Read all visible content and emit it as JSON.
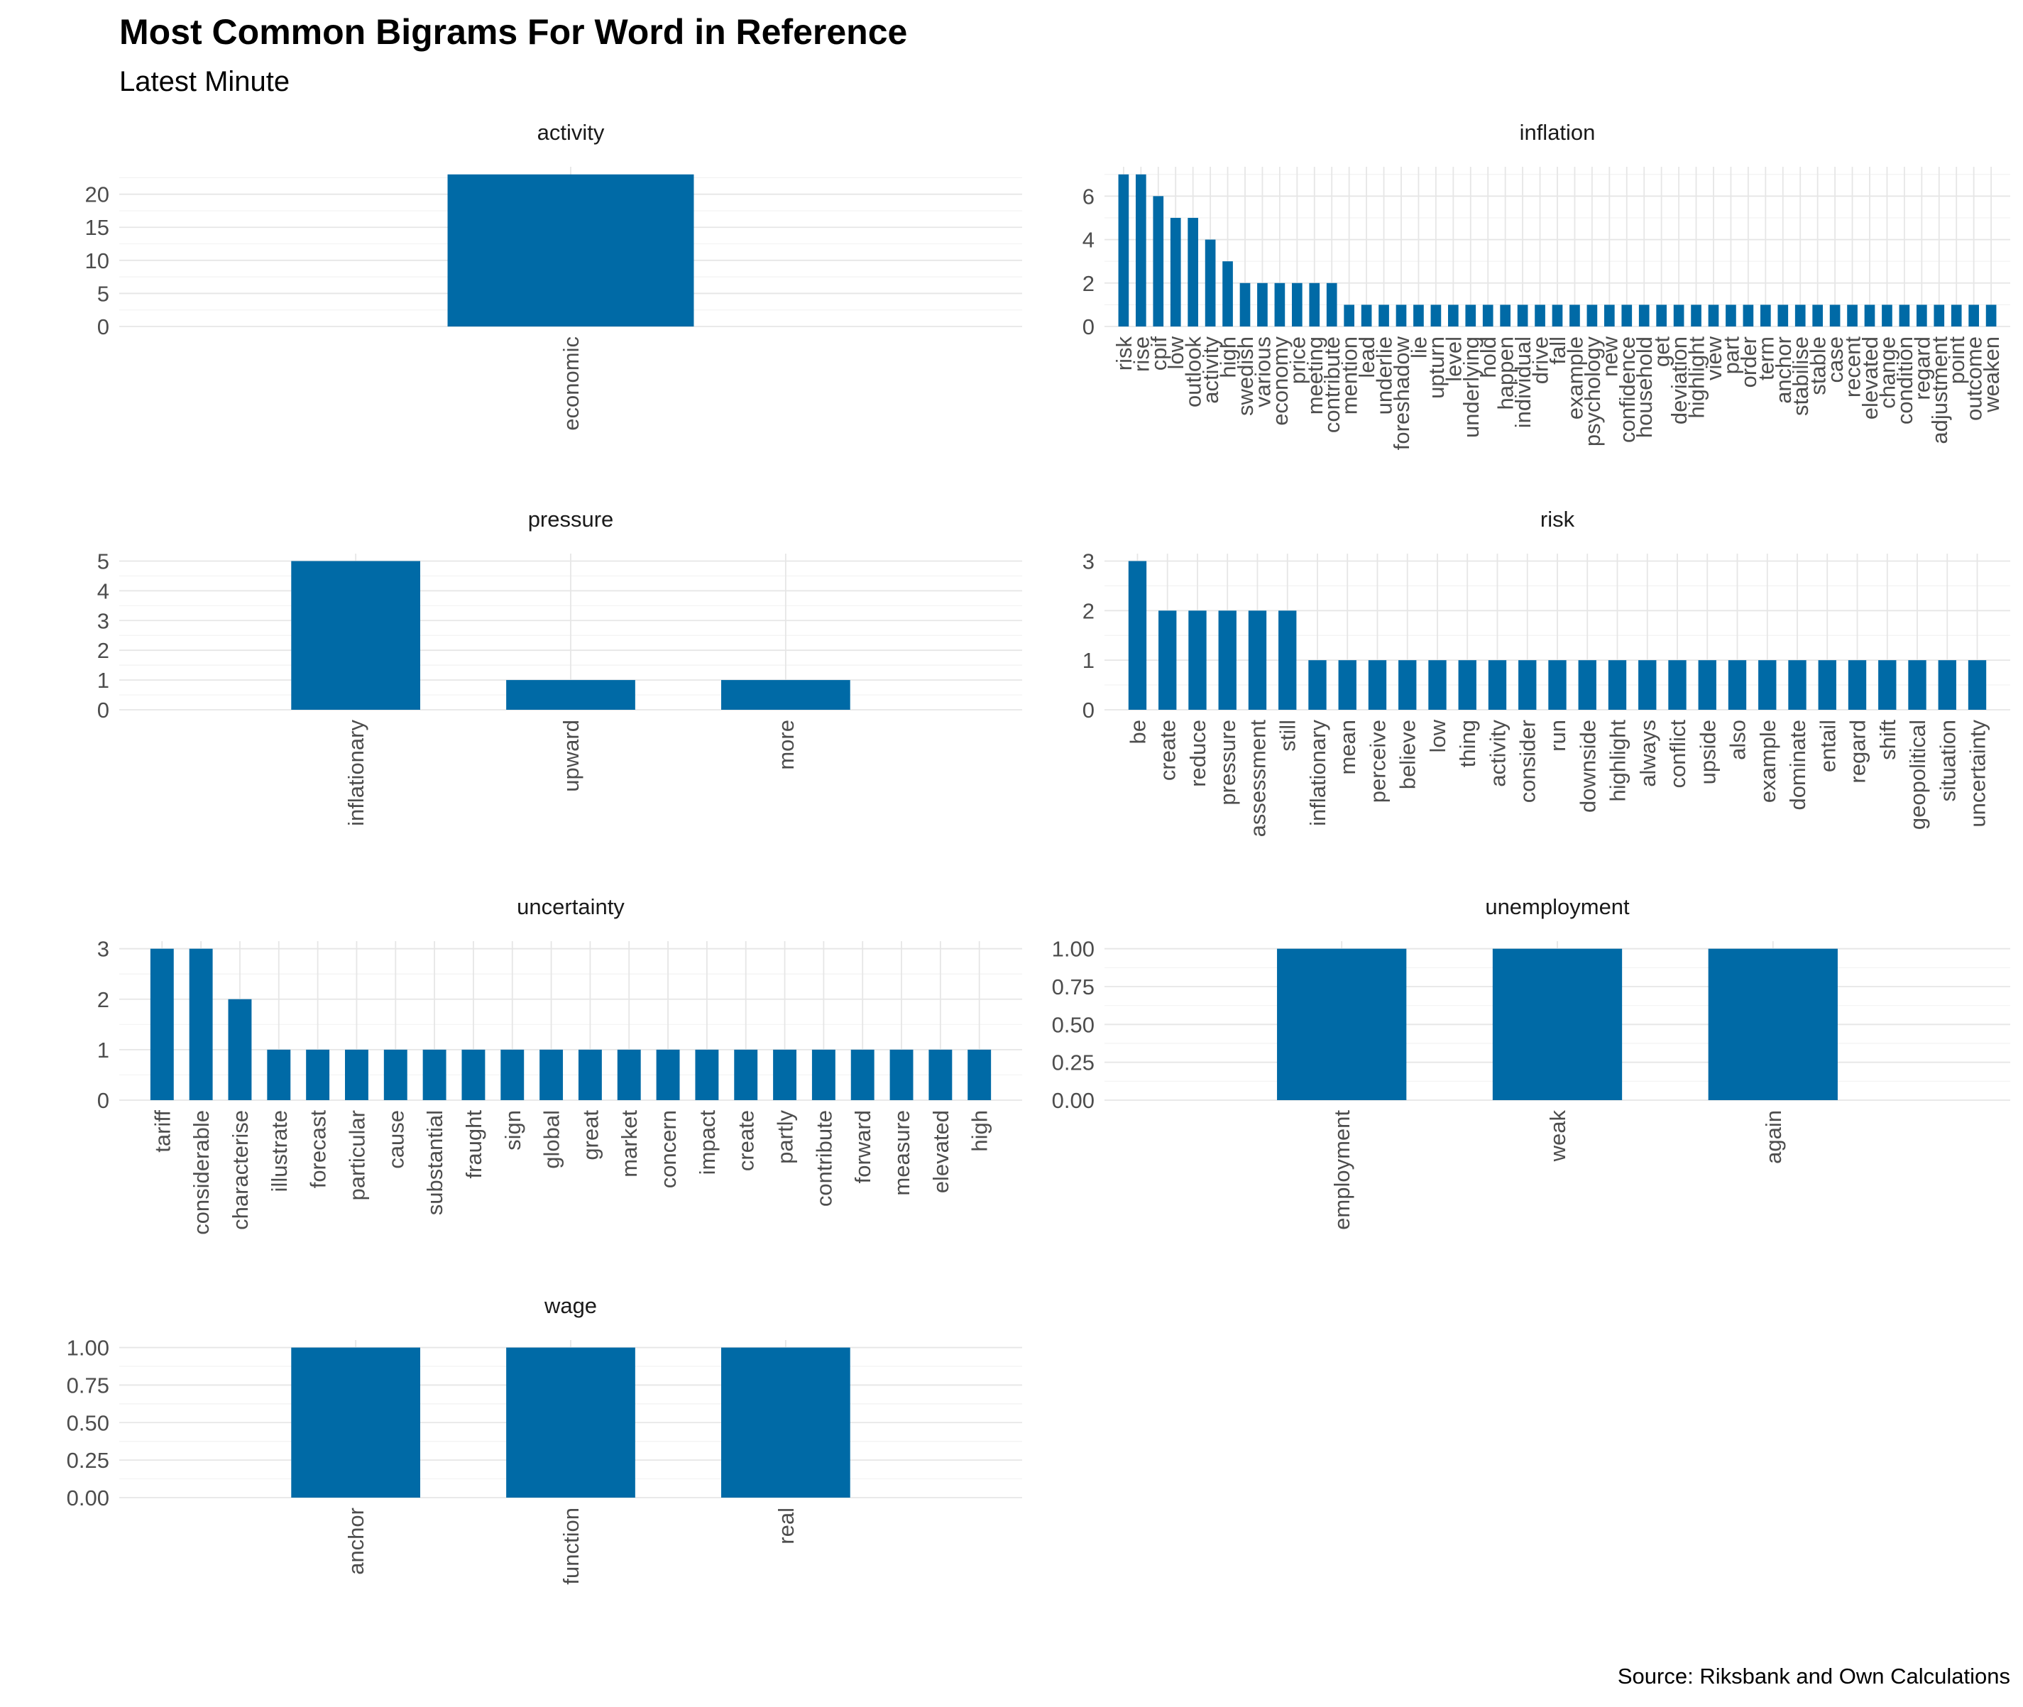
{
  "title": "Most Common Bigrams For Word in Reference",
  "subtitle": "Latest Minute",
  "caption": "Source: Riksbank and Own Calculations",
  "bar_color": "#006AA6",
  "chart_data": [
    {
      "type": "bar",
      "facet": "activity",
      "categories": [
        "economic"
      ],
      "values": [
        23
      ],
      "yticks": [
        "0",
        "5",
        "10",
        "15",
        "20"
      ],
      "ylim": [
        0,
        24.15
      ]
    },
    {
      "type": "bar",
      "facet": "inflation",
      "categories": [
        "risk",
        "rise",
        "cpif",
        "low",
        "outlook",
        "activity",
        "high",
        "swedish",
        "various",
        "economy",
        "price",
        "meeting",
        "contribute",
        "mention",
        "lead",
        "underlie",
        "foreshadow",
        "lie",
        "upturn",
        "level",
        "underlying",
        "hold",
        "happen",
        "individual",
        "drive",
        "fall",
        "example",
        "psychology",
        "new",
        "confidence",
        "household",
        "get",
        "deviation",
        "highlight",
        "view",
        "part",
        "order",
        "term",
        "anchor",
        "stabilise",
        "stable",
        "case",
        "recent",
        "elevated",
        "change",
        "condition",
        "regard",
        "adjustment",
        "point",
        "outcome",
        "weaken"
      ],
      "values": [
        7,
        7,
        6,
        5,
        5,
        4,
        3,
        2,
        2,
        2,
        2,
        2,
        2,
        1,
        1,
        1,
        1,
        1,
        1,
        1,
        1,
        1,
        1,
        1,
        1,
        1,
        1,
        1,
        1,
        1,
        1,
        1,
        1,
        1,
        1,
        1,
        1,
        1,
        1,
        1,
        1,
        1,
        1,
        1,
        1,
        1,
        1,
        1,
        1,
        1,
        1
      ],
      "yticks": [
        "0",
        "2",
        "4",
        "6"
      ],
      "ylim": [
        0,
        7.35
      ]
    },
    {
      "type": "bar",
      "facet": "pressure",
      "categories": [
        "inflationary",
        "upward",
        "more"
      ],
      "values": [
        5,
        1,
        1
      ],
      "yticks": [
        "0",
        "1",
        "2",
        "3",
        "4",
        "5"
      ],
      "ylim": [
        0,
        5.25
      ]
    },
    {
      "type": "bar",
      "facet": "risk",
      "categories": [
        "be",
        "create",
        "reduce",
        "pressure",
        "assessment",
        "still",
        "inflationary",
        "mean",
        "perceive",
        "believe",
        "low",
        "thing",
        "activity",
        "consider",
        "run",
        "downside",
        "highlight",
        "always",
        "conflict",
        "upside",
        "also",
        "example",
        "dominate",
        "entail",
        "regard",
        "shift",
        "geopolitical",
        "situation",
        "uncertainty"
      ],
      "values": [
        3,
        2,
        2,
        2,
        2,
        2,
        1,
        1,
        1,
        1,
        1,
        1,
        1,
        1,
        1,
        1,
        1,
        1,
        1,
        1,
        1,
        1,
        1,
        1,
        1,
        1,
        1,
        1,
        1
      ],
      "yticks": [
        "0",
        "1",
        "2",
        "3"
      ],
      "ylim": [
        0,
        3.15
      ]
    },
    {
      "type": "bar",
      "facet": "uncertainty",
      "categories": [
        "tariff",
        "considerable",
        "characterise",
        "illustrate",
        "forecast",
        "particular",
        "cause",
        "substantial",
        "fraught",
        "sign",
        "global",
        "great",
        "market",
        "concern",
        "impact",
        "create",
        "partly",
        "contribute",
        "forward",
        "measure",
        "elevated",
        "high"
      ],
      "values": [
        3,
        3,
        2,
        1,
        1,
        1,
        1,
        1,
        1,
        1,
        1,
        1,
        1,
        1,
        1,
        1,
        1,
        1,
        1,
        1,
        1,
        1
      ],
      "yticks": [
        "0",
        "1",
        "2",
        "3"
      ],
      "ylim": [
        0,
        3.15
      ]
    },
    {
      "type": "bar",
      "facet": "unemployment",
      "categories": [
        "employment",
        "weak",
        "again"
      ],
      "values": [
        1,
        1,
        1
      ],
      "yticks": [
        "0.00",
        "0.25",
        "0.50",
        "0.75",
        "1.00"
      ],
      "ylim": [
        0,
        1.05
      ]
    },
    {
      "type": "bar",
      "facet": "wage",
      "categories": [
        "anchor",
        "function",
        "real"
      ],
      "values": [
        1,
        1,
        1
      ],
      "yticks": [
        "0.00",
        "0.25",
        "0.50",
        "0.75",
        "1.00"
      ],
      "ylim": [
        0,
        1.05
      ]
    }
  ]
}
